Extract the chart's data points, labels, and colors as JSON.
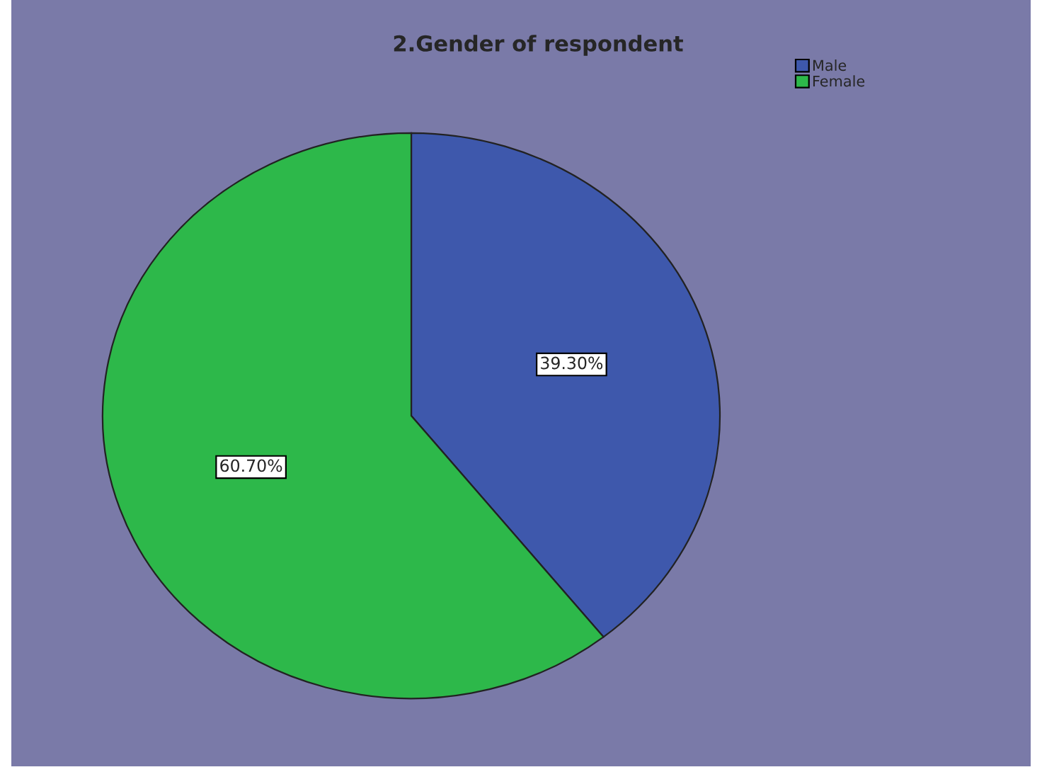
{
  "chart_data": {
    "type": "pie",
    "title": "2.Gender of respondent",
    "categories": [
      "Male",
      "Female"
    ],
    "values": [
      39.3,
      60.7
    ],
    "colors": [
      "#3e58ac",
      "#2db84a"
    ],
    "value_labels": [
      "39.30%",
      "60.70%"
    ],
    "legend": "top right"
  }
}
